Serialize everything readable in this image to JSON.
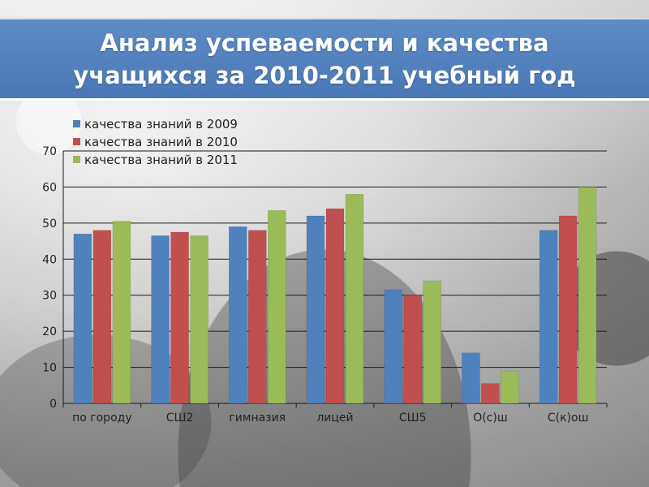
{
  "header": {
    "title_line1": "Анализ успеваемости и качества",
    "title_line2": "учащихся за 2010-2011 учебный год",
    "bar_color": "#4f7fbd"
  },
  "chart_data": {
    "type": "bar",
    "categories": [
      "по городу",
      "СШ2",
      "гимназия",
      "лицей",
      "СШ5",
      "О(с)ш",
      "С(к)ош"
    ],
    "series": [
      {
        "name": "качества знаний в 2009",
        "color": "#4f81bd",
        "values": [
          47,
          46.5,
          49,
          52,
          31.5,
          14,
          48
        ]
      },
      {
        "name": "качества знаний в 2010",
        "color": "#c0504d",
        "values": [
          48,
          47.5,
          48,
          54,
          30,
          5.5,
          52
        ]
      },
      {
        "name": "качества знаний в 2011",
        "color": "#9bbb59",
        "values": [
          50.5,
          46.5,
          53.5,
          58,
          34,
          9,
          60
        ]
      }
    ],
    "ylim": [
      0,
      70
    ],
    "yticks": [
      "0",
      "10",
      "20",
      "30",
      "40",
      "50",
      "60",
      "70"
    ],
    "grid": true,
    "legend": "top-left",
    "xlabel": "",
    "ylabel": ""
  }
}
